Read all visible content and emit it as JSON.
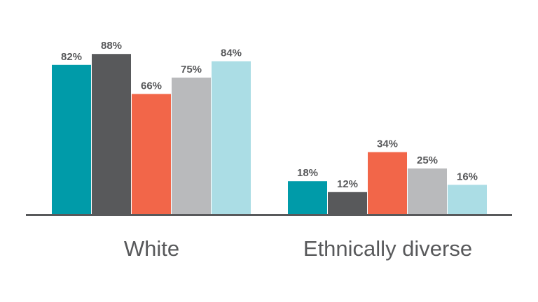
{
  "chart_data": {
    "type": "bar",
    "categories": [
      "White",
      "Ethnically diverse"
    ],
    "value_suffix": "%",
    "series": [
      {
        "color": "#009ba9",
        "values": [
          82,
          18
        ]
      },
      {
        "color": "#58595b",
        "values": [
          88,
          12
        ]
      },
      {
        "color": "#f26649",
        "values": [
          66,
          34
        ]
      },
      {
        "color": "#b9babc",
        "values": [
          75,
          25
        ]
      },
      {
        "color": "#abdde5",
        "values": [
          84,
          16
        ]
      }
    ],
    "title": "",
    "xlabel": "",
    "ylabel": "",
    "ylim": [
      0,
      100
    ],
    "grid": false,
    "legend": "none",
    "baseline_color": "#58595b"
  }
}
